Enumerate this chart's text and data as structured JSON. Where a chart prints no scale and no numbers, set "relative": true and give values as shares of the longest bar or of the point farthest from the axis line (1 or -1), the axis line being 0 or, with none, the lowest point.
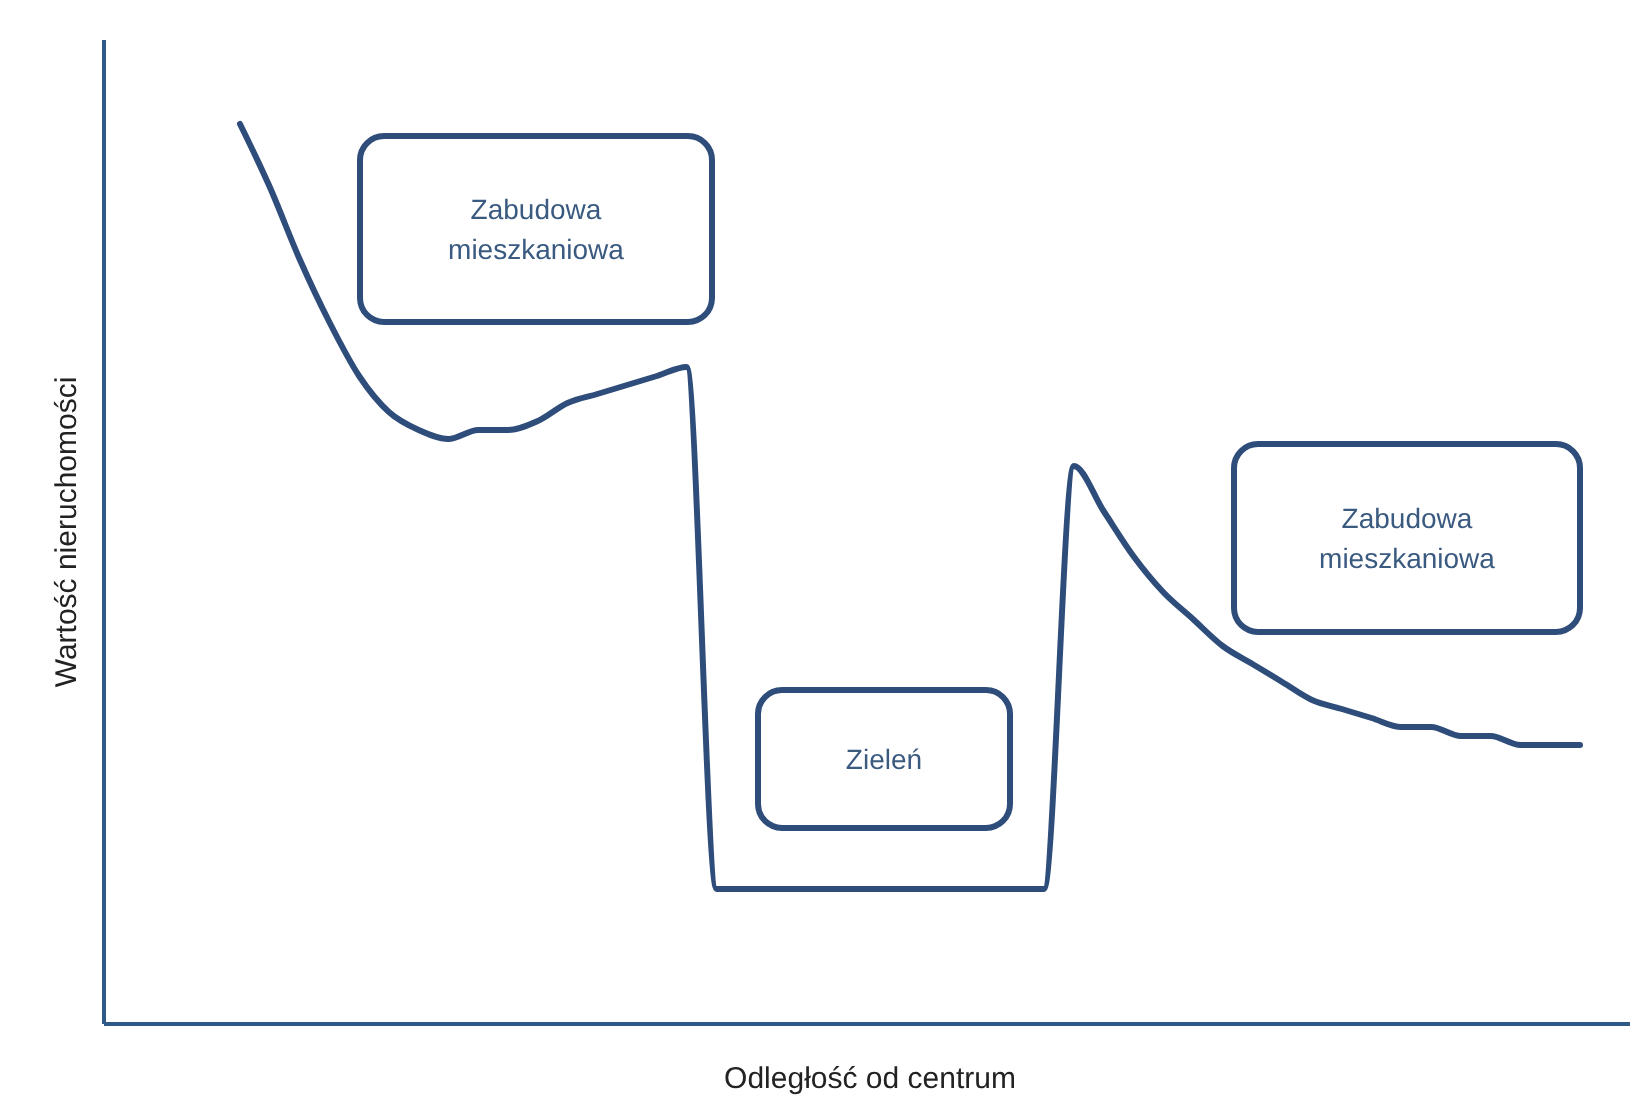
{
  "chart_data": {
    "type": "line",
    "relative": true,
    "xlabel": "Odległość od centrum",
    "ylabel": "Wartość nieruchomości",
    "color": "#2e4d7b",
    "categories": [
      null,
      null,
      null,
      null,
      null,
      null,
      null,
      null,
      null,
      null,
      null,
      null,
      null,
      null,
      null,
      null,
      null,
      null,
      null,
      null,
      null,
      null,
      null,
      null,
      null,
      null,
      null,
      null,
      null,
      null,
      null,
      null,
      null,
      null,
      null,
      null,
      null,
      null,
      null,
      null,
      null,
      null,
      null,
      null,
      null,
      null
    ],
    "values": [
      1.0,
      0.93,
      0.85,
      0.78,
      0.72,
      0.68,
      0.66,
      0.65,
      0.66,
      0.66,
      0.67,
      0.69,
      0.7,
      0.71,
      0.72,
      0.73,
      0.15,
      0.15,
      0.15,
      0.15,
      0.15,
      0.15,
      0.15,
      0.15,
      0.15,
      0.15,
      0.15,
      0.15,
      0.62,
      0.57,
      0.52,
      0.48,
      0.45,
      0.42,
      0.4,
      0.38,
      0.36,
      0.35,
      0.34,
      0.33,
      0.33,
      0.32,
      0.32,
      0.31,
      0.31,
      0.31
    ],
    "annotations": [
      "Zabudowa mieszkaniowa",
      "Zieleń",
      "Zabudowa mieszkaniowa"
    ]
  }
}
